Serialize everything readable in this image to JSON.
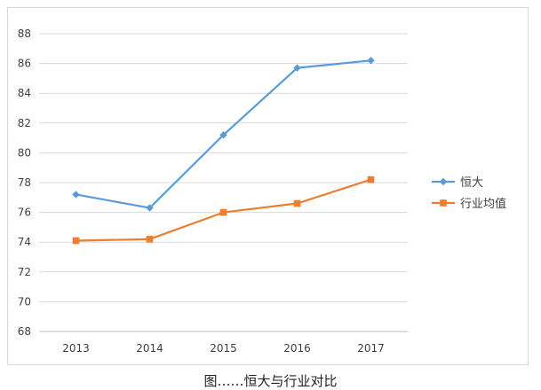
{
  "chart_data": {
    "type": "line",
    "categories": [
      "2013",
      "2014",
      "2015",
      "2016",
      "2017"
    ],
    "series": [
      {
        "name": "恒大",
        "values": [
          77.2,
          76.3,
          81.2,
          85.7,
          86.2
        ],
        "color": "#5b9bd5",
        "marker": "diamond"
      },
      {
        "name": "行业均值",
        "values": [
          74.1,
          74.2,
          76.0,
          76.6,
          78.2
        ],
        "color": "#ed7d31",
        "marker": "square"
      }
    ],
    "ylim": [
      68,
      88
    ],
    "yticks": [
      68,
      70,
      72,
      74,
      76,
      78,
      80,
      82,
      84,
      86,
      88
    ],
    "grid": true,
    "legend_position": "right",
    "title": "",
    "xlabel": "",
    "ylabel": ""
  },
  "caption": "图……恒大与行业对比"
}
